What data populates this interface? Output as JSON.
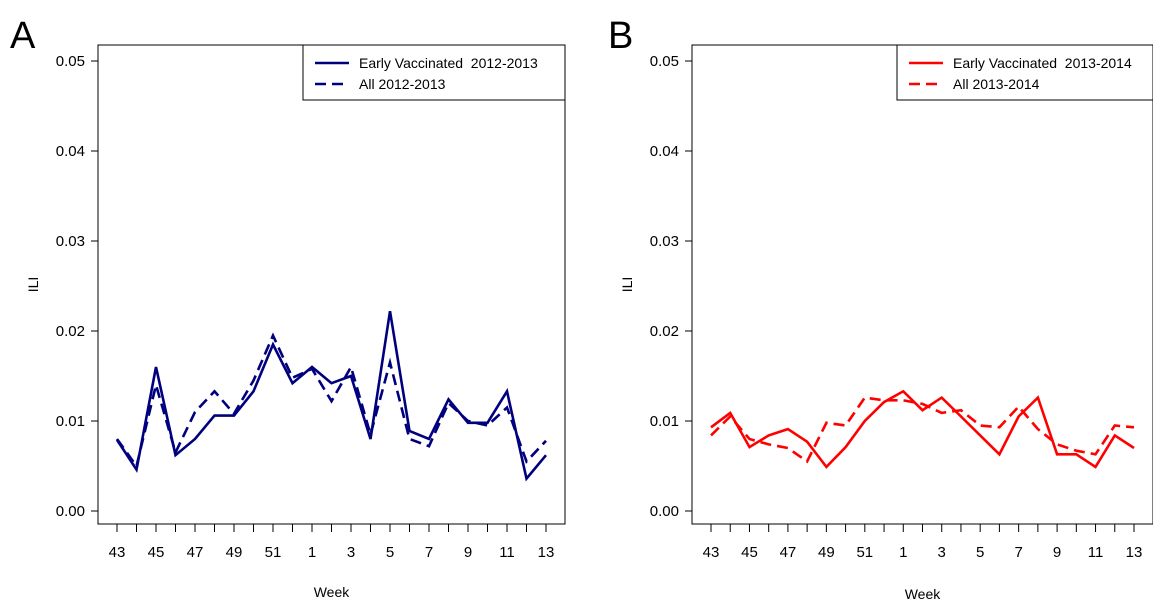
{
  "chart_data": [
    {
      "panel_label": "A",
      "type": "line",
      "xlabel": "Week",
      "ylabel": "ILI",
      "ylim": [
        0,
        0.05
      ],
      "yticks": [
        "0.00",
        "0.01",
        "0.02",
        "0.03",
        "0.04",
        "0.05"
      ],
      "x": [
        "43",
        "44",
        "45",
        "46",
        "47",
        "48",
        "49",
        "50",
        "51",
        "52",
        "1",
        "2",
        "3",
        "4",
        "5",
        "6",
        "7",
        "8",
        "9",
        "10",
        "11",
        "12",
        "13"
      ],
      "xtick_labels": [
        "43",
        "45",
        "47",
        "49",
        "51",
        "1",
        "3",
        "5",
        "7",
        "9",
        "11",
        "13"
      ],
      "grid": false,
      "legend_position": "top-right",
      "color": "#00007F",
      "series": [
        {
          "name": "Early Vaccinated  2012-2013",
          "style": "solid",
          "values": [
            0.0079,
            0.0046,
            0.016,
            0.0062,
            0.008,
            0.0106,
            0.0106,
            0.0133,
            0.0185,
            0.0142,
            0.016,
            0.0142,
            0.015,
            0.008,
            0.0222,
            0.0089,
            0.008,
            0.0124,
            0.0098,
            0.0098,
            0.0133,
            0.0036,
            0.0062
          ]
        },
        {
          "name": "All 2012-2013",
          "style": "dashed",
          "values": [
            0.008,
            0.005,
            0.014,
            0.0065,
            0.011,
            0.0133,
            0.0108,
            0.0145,
            0.0195,
            0.0148,
            0.0158,
            0.0122,
            0.016,
            0.0085,
            0.0165,
            0.008,
            0.0072,
            0.012,
            0.01,
            0.0095,
            0.0115,
            0.0055,
            0.0078
          ]
        }
      ]
    },
    {
      "panel_label": "B",
      "type": "line",
      "xlabel": "Week",
      "ylabel": "ILI",
      "ylim": [
        0,
        0.05
      ],
      "yticks": [
        "0.00",
        "0.01",
        "0.02",
        "0.03",
        "0.04",
        "0.05"
      ],
      "x": [
        "43",
        "44",
        "45",
        "46",
        "47",
        "48",
        "49",
        "50",
        "51",
        "52",
        "1",
        "2",
        "3",
        "4",
        "5",
        "6",
        "7",
        "8",
        "9",
        "10",
        "11",
        "12",
        "13"
      ],
      "xtick_labels": [
        "43",
        "45",
        "47",
        "49",
        "51",
        "1",
        "3",
        "5",
        "7",
        "9",
        "11",
        "13"
      ],
      "grid": false,
      "legend_position": "top-right",
      "color": "#FF0000",
      "series": [
        {
          "name": "Early Vaccinated  2013-2014",
          "style": "solid",
          "values": [
            0.0093,
            0.0109,
            0.0071,
            0.0084,
            0.0091,
            0.0077,
            0.0049,
            0.0071,
            0.01,
            0.0121,
            0.0133,
            0.0112,
            0.0126,
            0.0105,
            0.0084,
            0.0063,
            0.0105,
            0.0126,
            0.0063,
            0.0063,
            0.0049,
            0.0084,
            0.007
          ]
        },
        {
          "name": "All 2013-2014",
          "style": "dashed",
          "values": [
            0.0084,
            0.0105,
            0.008,
            0.0074,
            0.007,
            0.0055,
            0.0098,
            0.0095,
            0.0126,
            0.0123,
            0.0123,
            0.0119,
            0.0109,
            0.0112,
            0.0095,
            0.0093,
            0.0116,
            0.0091,
            0.0074,
            0.0067,
            0.0063,
            0.0095,
            0.0093
          ]
        }
      ]
    }
  ]
}
